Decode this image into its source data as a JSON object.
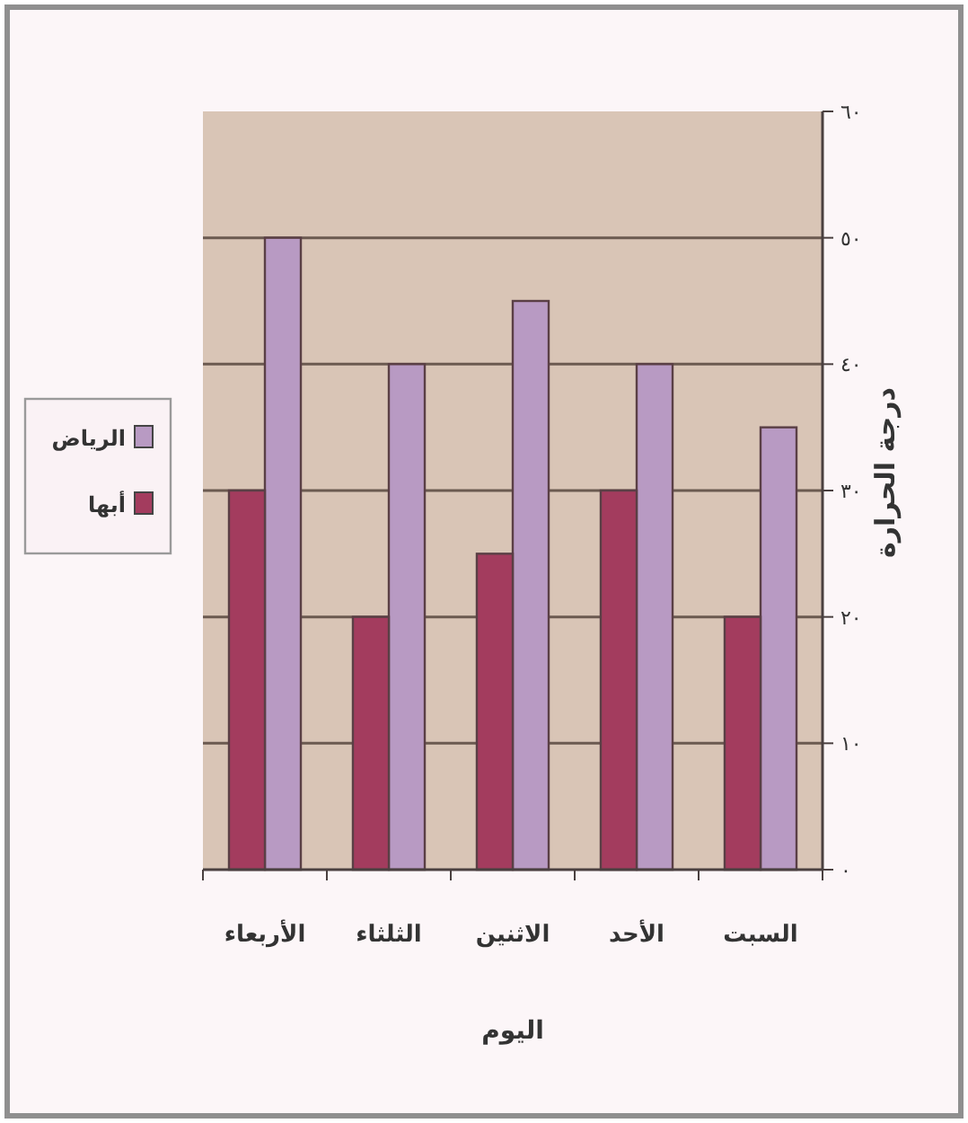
{
  "chart_data": {
    "type": "bar",
    "categories": [
      "الأربعاء",
      "الثلثاء",
      "الاثنين",
      "الأحد",
      "السبت"
    ],
    "series": [
      {
        "name": "الرياض",
        "color": "#b89ac3",
        "values": [
          50,
          40,
          45,
          40,
          35
        ]
      },
      {
        "name": "أبها",
        "color": "#a33c5e",
        "values": [
          30,
          20,
          25,
          30,
          20
        ]
      }
    ],
    "xlabel": "اليوم",
    "ylabel": "درجة الحرارة",
    "ylim": [
      0,
      60
    ],
    "yticks": [
      {
        "value": 0,
        "label": "٠"
      },
      {
        "value": 10,
        "label": "١٠"
      },
      {
        "value": 20,
        "label": "٢٠"
      },
      {
        "value": 30,
        "label": "٣٠"
      },
      {
        "value": 40,
        "label": "٤٠"
      },
      {
        "value": 50,
        "label": "٥٠"
      },
      {
        "value": 60,
        "label": "٦٠"
      }
    ],
    "grid": "y",
    "legend": "left"
  }
}
